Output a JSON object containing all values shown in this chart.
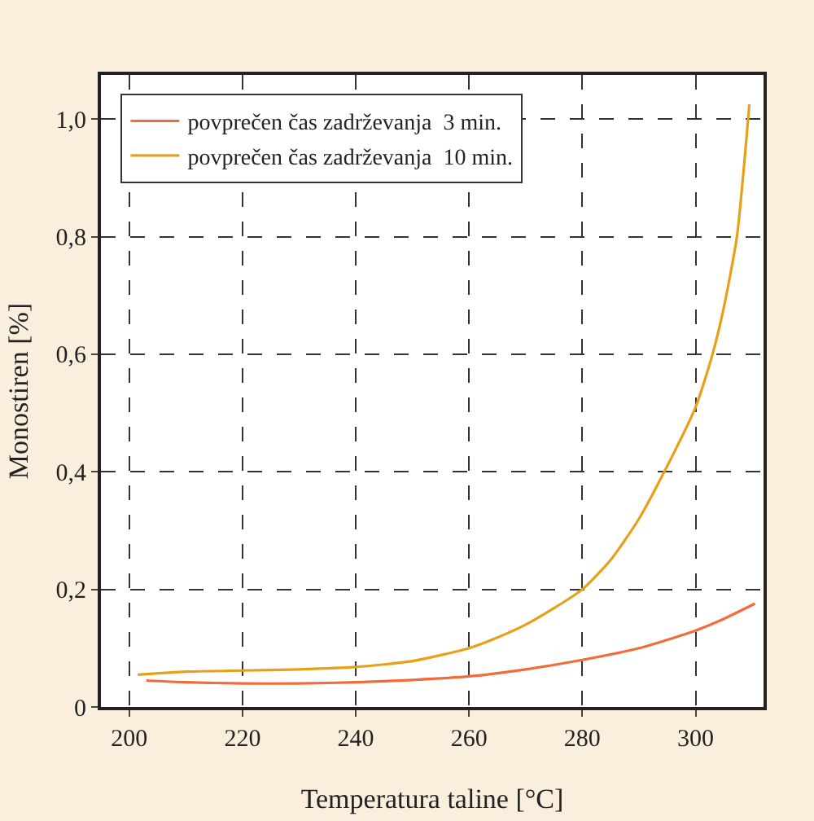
{
  "chart_data": {
    "type": "line",
    "xlabel": "Temperatura taline [°C]",
    "ylabel": "Monostiren [%]",
    "xlim": [
      195,
      312
    ],
    "xticks": [
      200,
      220,
      240,
      260,
      280,
      300
    ],
    "ylim": [
      0,
      1.075
    ],
    "yticks": [
      0,
      {
        "value": 0.2,
        "label": "0,2"
      },
      {
        "value": 0.4,
        "label": "0,4"
      },
      {
        "value": 0.6,
        "label": "0,6"
      },
      {
        "value": 0.8,
        "label": "0,8"
      },
      {
        "value": 1,
        "label": "1,0"
      }
    ],
    "grid": true,
    "legend": "top left",
    "line_style": "solid",
    "marker": "none",
    "series": [
      {
        "name": "povprečen čas zadrževanja  3 min.",
        "color": "#f26b3a",
        "x": [
          203,
          210,
          220,
          230,
          240,
          250,
          260,
          270,
          280,
          290,
          300,
          305,
          310.5
        ],
        "values": [
          0.045,
          0.042,
          0.04,
          0.04,
          0.042,
          0.046,
          0.052,
          0.064,
          0.08,
          0.1,
          0.13,
          0.15,
          0.176
        ]
      },
      {
        "name": "povprečen čas zadrževanja  10 min.",
        "color": "#e8a01a",
        "x": [
          201.5,
          210,
          220,
          230,
          240,
          250,
          260,
          265,
          270,
          275,
          280,
          285,
          290,
          295,
          300,
          303,
          305,
          307.3,
          309.5
        ],
        "values": [
          0.055,
          0.06,
          0.062,
          0.064,
          0.068,
          0.078,
          0.1,
          0.118,
          0.14,
          0.168,
          0.2,
          0.25,
          0.32,
          0.41,
          0.51,
          0.6,
          0.68,
          0.8,
          1.025
        ]
      }
    ]
  }
}
